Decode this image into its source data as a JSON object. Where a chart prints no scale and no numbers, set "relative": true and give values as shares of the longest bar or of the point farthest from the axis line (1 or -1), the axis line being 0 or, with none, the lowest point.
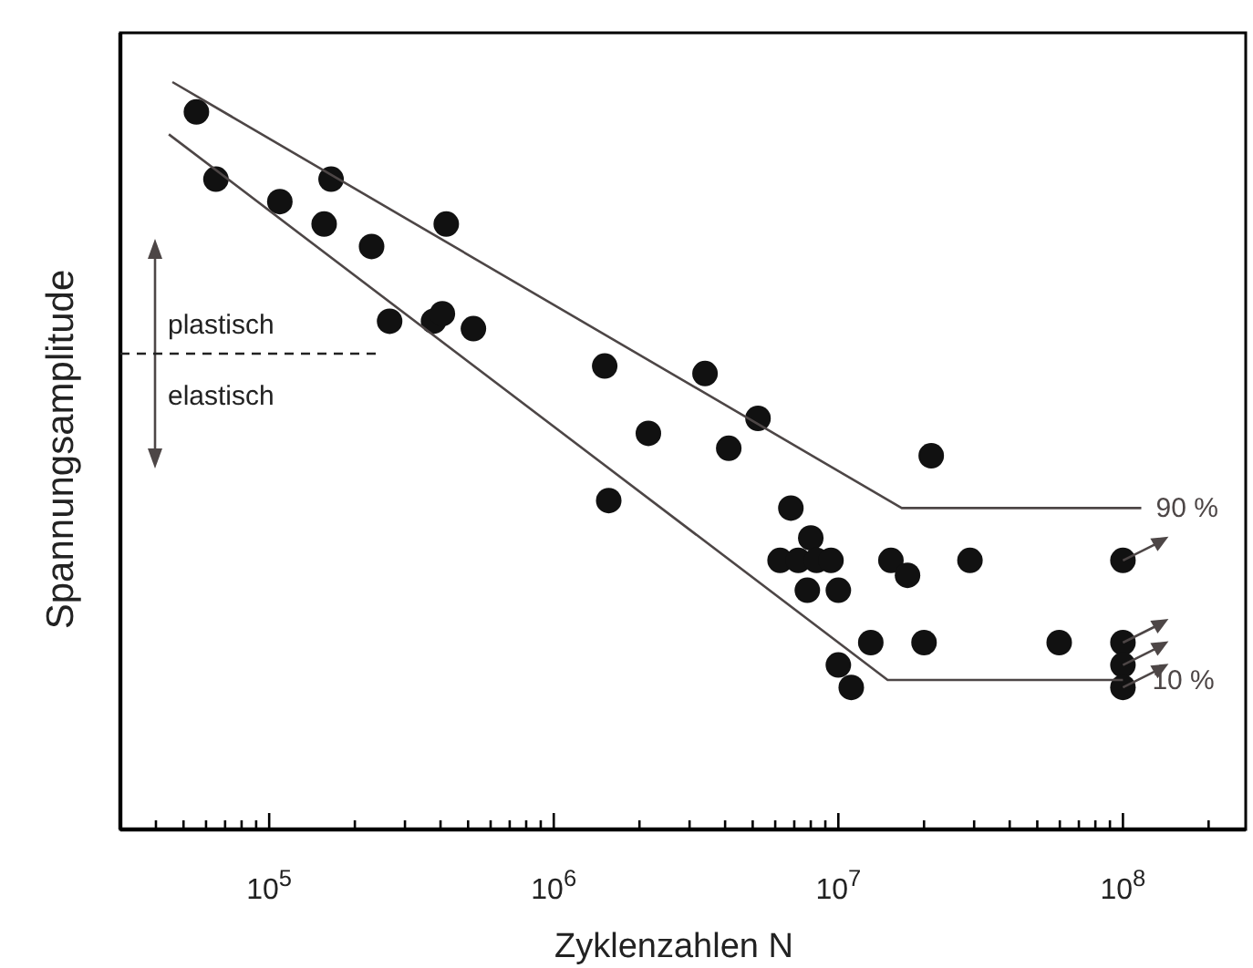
{
  "chart_data": {
    "type": "scatter",
    "relative": true,
    "log": "x",
    "xlabel": "Zyklenzahlen N",
    "ylabel": "Spannungsamplitude",
    "line_style": "solid",
    "grid": false,
    "xlim": [
      30000,
      270000000
    ],
    "xticks": [
      {
        "value": 40000,
        "label": null
      },
      {
        "value": 50000,
        "label": null
      },
      {
        "value": 60000,
        "label": null
      },
      {
        "value": 70000,
        "label": null
      },
      {
        "value": 80000,
        "label": null
      },
      {
        "value": 90000,
        "label": null
      },
      {
        "value": 100000,
        "label": "10$^{5}$"
      },
      {
        "value": 200000,
        "label": null
      },
      {
        "value": 300000,
        "label": null
      },
      {
        "value": 400000,
        "label": null
      },
      {
        "value": 500000,
        "label": null
      },
      {
        "value": 600000,
        "label": null
      },
      {
        "value": 700000,
        "label": null
      },
      {
        "value": 800000,
        "label": null
      },
      {
        "value": 900000,
        "label": null
      },
      {
        "value": 1000000,
        "label": "10$^{6}$"
      },
      {
        "value": 2000000,
        "label": null
      },
      {
        "value": 3000000,
        "label": null
      },
      {
        "value": 4000000,
        "label": null
      },
      {
        "value": 5000000,
        "label": null
      },
      {
        "value": 6000000,
        "label": null
      },
      {
        "value": 7000000,
        "label": null
      },
      {
        "value": 8000000,
        "label": null
      },
      {
        "value": 9000000,
        "label": null
      },
      {
        "value": 10000000,
        "label": "10$^{7}$"
      },
      {
        "value": 20000000,
        "label": null
      },
      {
        "value": 30000000,
        "label": null
      },
      {
        "value": 40000000,
        "label": null
      },
      {
        "value": 50000000,
        "label": null
      },
      {
        "value": 60000000,
        "label": null
      },
      {
        "value": 70000000,
        "label": null
      },
      {
        "value": 80000000,
        "label": null
      },
      {
        "value": 90000000,
        "label": null
      },
      {
        "value": 100000000,
        "label": "10$^{8}$"
      },
      {
        "value": 200000000,
        "label": null
      }
    ],
    "annotations": [
      "plastisch",
      "elastisch"
    ],
    "series": [
      {
        "marker": "circle",
        "color": "#111111",
        "x": [
          55500,
          65000,
          109000,
          165000,
          156000,
          229000,
          419000,
          265000,
          378000,
          406000,
          522000,
          1510000,
          3400000,
          5220000,
          2150000,
          4120000,
          1560000,
          6810000,
          8000000,
          6240000,
          7230000,
          8380000,
          9420000,
          7780000,
          10000000,
          15300000,
          17500000,
          29000000,
          21200000,
          100000000,
          13000000,
          20000000,
          59700000,
          100000000,
          100000000,
          100000000,
          10000000,
          11100000
        ],
        "values": [
          0.96,
          0.87,
          0.84,
          0.87,
          0.81,
          0.78,
          0.81,
          0.68,
          0.68,
          0.69,
          0.67,
          0.62,
          0.61,
          0.55,
          0.53,
          0.51,
          0.44,
          0.43,
          0.39,
          0.36,
          0.36,
          0.36,
          0.36,
          0.32,
          0.32,
          0.36,
          0.34,
          0.36,
          0.5,
          0.36,
          0.25,
          0.25,
          0.25,
          0.25,
          0.22,
          0.19,
          0.22,
          0.19
        ]
      },
      {
        "type": "line",
        "marker": "none",
        "name": "90 %",
        "color": "#4d4646",
        "x": [
          45700,
          16700000,
          116000000
        ],
        "values": [
          1.0,
          0.43,
          0.43
        ]
      },
      {
        "type": "line",
        "marker": "none",
        "name": "10 %",
        "color": "#4d4646",
        "x": [
          44400,
          14900000,
          100000000
        ],
        "values": [
          0.93,
          0.2,
          0.2
        ]
      }
    ]
  }
}
